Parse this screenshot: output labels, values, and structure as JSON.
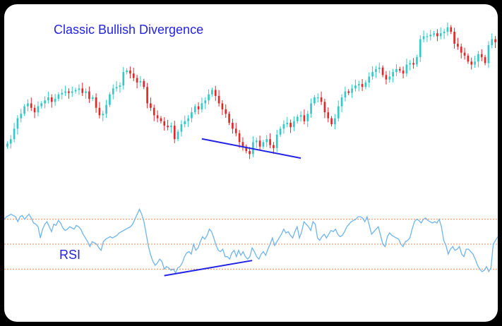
{
  "chart_data": [
    {
      "type": "candlestick",
      "title": "Classic Bullish Divergence",
      "xlabel": "",
      "ylabel": "",
      "ylim": [
        0,
        100
      ],
      "grid": false,
      "colors": {
        "up": "#35c8c8",
        "down": "#e02828"
      },
      "closes": [
        45,
        48,
        55,
        62,
        65,
        70,
        72,
        69,
        66,
        70,
        72,
        74,
        76,
        73,
        75,
        78,
        79,
        80,
        79,
        80,
        81,
        82,
        79,
        80,
        75,
        76,
        69,
        64,
        65,
        71,
        78,
        82,
        83,
        84,
        93,
        94,
        92,
        89,
        86,
        87,
        83,
        72,
        69,
        64,
        62,
        60,
        57,
        56,
        57,
        48,
        53,
        58,
        60,
        62,
        66,
        70,
        68,
        72,
        74,
        78,
        81,
        77,
        72,
        68,
        65,
        59,
        55,
        52,
        46,
        43,
        40,
        38,
        46,
        47,
        43,
        46,
        48,
        44,
        42,
        51,
        55,
        58,
        59,
        56,
        60,
        63,
        64,
        60,
        65,
        72,
        76,
        76,
        73,
        66,
        62,
        58,
        62,
        70,
        76,
        80,
        79,
        82,
        84,
        85,
        83,
        86,
        90,
        93,
        95,
        96,
        91,
        88,
        90,
        93,
        95,
        94,
        92,
        98,
        99,
        98,
        103,
        115,
        117,
        117,
        118,
        119,
        117,
        119,
        120,
        123,
        120,
        112,
        110,
        106,
        104,
        100,
        98,
        100,
        105,
        103,
        99,
        111,
        115,
        113
      ],
      "divergence_line": {
        "from_index": 57,
        "to_index": 86,
        "start": 52,
        "end": 40
      }
    },
    {
      "type": "line",
      "label": "RSI",
      "ylim": [
        0,
        100
      ],
      "levels": [
        30,
        50,
        70
      ],
      "colors": {
        "line": "#6fb4ec",
        "levels": "#f4874a",
        "divergence": "#2323e6"
      },
      "values": [
        70,
        72,
        73,
        74,
        73,
        72,
        68,
        72,
        73,
        70,
        72,
        74,
        71,
        67,
        66,
        64,
        55,
        62,
        66,
        68,
        64,
        60,
        66,
        65,
        69,
        67,
        63,
        61,
        62,
        64,
        63,
        62,
        65,
        64,
        62,
        58,
        55,
        52,
        48,
        52,
        51,
        50,
        47,
        45,
        52,
        54,
        55,
        56,
        55,
        56,
        57,
        59,
        60,
        61,
        62,
        63,
        64,
        66,
        70,
        74,
        78,
        74,
        68,
        58,
        48,
        41,
        36,
        33,
        35,
        38,
        36,
        30,
        32,
        31,
        29,
        30,
        27,
        31,
        32,
        35,
        40,
        43,
        44,
        42,
        50,
        45,
        47,
        52,
        56,
        54,
        57,
        62,
        60,
        55,
        49,
        45,
        44,
        46,
        40,
        40,
        38,
        43,
        45,
        40,
        45,
        41,
        44,
        40,
        38,
        40,
        47,
        44,
        40,
        38,
        42,
        44,
        41,
        46,
        50,
        55,
        49,
        52,
        55,
        58,
        62,
        59,
        60,
        57,
        55,
        60,
        64,
        55,
        60,
        68,
        66,
        64,
        61,
        68,
        66,
        55,
        53,
        56,
        58,
        55,
        58,
        61,
        60,
        62,
        58,
        56,
        57,
        60,
        64,
        66,
        68,
        69,
        70,
        72,
        72,
        71,
        68,
        72,
        65,
        58,
        60,
        62,
        64,
        57,
        50,
        48,
        56,
        59,
        57,
        56,
        55,
        54,
        50,
        48,
        52,
        53,
        55,
        62,
        68,
        70,
        69,
        67,
        70,
        71,
        69,
        68,
        67,
        68,
        67,
        70,
        64,
        53,
        49,
        42,
        46,
        48,
        45,
        46,
        48,
        42,
        40,
        46,
        46,
        44,
        42,
        38,
        33,
        30,
        28,
        29,
        32,
        28,
        31,
        50,
        53,
        56
      ],
      "divergence_line": {
        "from_index": 71,
        "to_index": 110,
        "start": 27,
        "end": 38
      }
    }
  ]
}
